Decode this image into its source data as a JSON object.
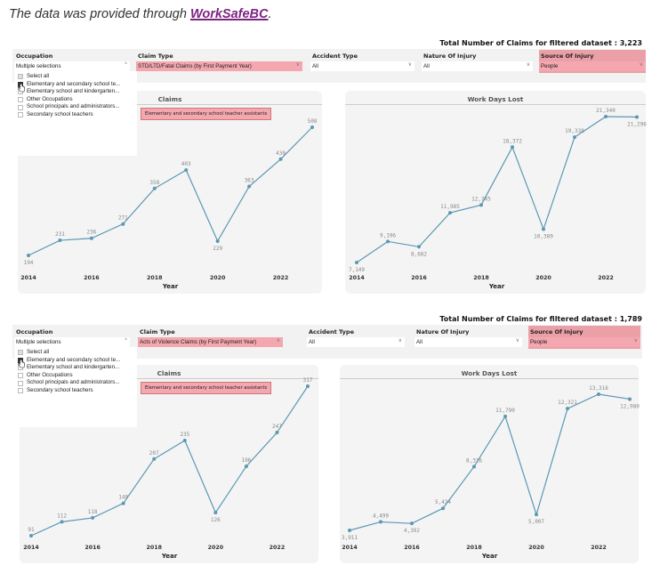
{
  "intro": {
    "text": "The data was provided through ",
    "link": "WorkSafeBC",
    "end": "."
  },
  "dashboards": [
    {
      "total_label": "Total Number of Claims for filtered dataset : 3,223",
      "filters": {
        "occupation": {
          "label": "Occupation",
          "value": "Multiple selections"
        },
        "claim_type": {
          "label": "Claim Type",
          "value": "STD/LTD/Fatal Claims (by First Payment Year)"
        },
        "accident_type": {
          "label": "Accident Type",
          "value": "All"
        },
        "nature": {
          "label": "Nature Of Injury",
          "value": "All"
        },
        "source": {
          "label": "Source Of Injury",
          "value": "People"
        }
      },
      "dropdown": [
        "Select all",
        "Elementary and secondary school te...",
        "Elementary school and kindergarten...",
        "Other Occupations",
        "School principals and administrators...",
        "Secondary school teachers"
      ],
      "tooltip": "Elementary and secondary school teacher assistants",
      "charts": [
        {
          "title": "Claims",
          "xlabel": "Year",
          "x": [
            2014,
            2015,
            2016,
            2017,
            2018,
            2019,
            2020,
            2021,
            2022,
            2023
          ],
          "values": [
            194,
            231,
            236,
            271,
            358,
            403,
            229,
            363,
            430,
            508
          ],
          "ticks": [
            "2014",
            "2016",
            "2018",
            "2020",
            "2022"
          ]
        },
        {
          "title": "Work Days Lost",
          "xlabel": "Year",
          "x": [
            2014,
            2015,
            2016,
            2017,
            2018,
            2019,
            2020,
            2021,
            2022,
            2023
          ],
          "values": [
            7149,
            9196,
            8682,
            11985,
            12745,
            18372,
            10389,
            19338,
            21340,
            21296
          ],
          "ticks": [
            "2014",
            "2016",
            "2018",
            "2020",
            "2022"
          ]
        }
      ]
    },
    {
      "total_label": "Total Number of Claims for filtered dataset : 1,789",
      "filters": {
        "occupation": {
          "label": "Occupation",
          "value": "Multiple selections"
        },
        "claim_type": {
          "label": "Claim Type",
          "value": "Acts of Violence Claims (by First Payment Year)"
        },
        "accident_type": {
          "label": "Accident Type",
          "value": "All"
        },
        "nature": {
          "label": "Nature Of Injury",
          "value": "All"
        },
        "source": {
          "label": "Source Of Injury",
          "value": "People"
        }
      },
      "dropdown": [
        "Select all",
        "Elementary and secondary school te...",
        "Elementary school and kindergarten...",
        "Other Occupations",
        "School principals and administrators...",
        "Secondary school teachers"
      ],
      "tooltip": "Elementary and secondary school teacher assistants",
      "charts": [
        {
          "title": "Claims",
          "xlabel": "Year",
          "x": [
            2014,
            2015,
            2016,
            2017,
            2018,
            2019,
            2020,
            2021,
            2022,
            2023
          ],
          "values": [
            91,
            112,
            118,
            140,
            207,
            235,
            126,
            196,
            247,
            317
          ],
          "ticks": [
            "2014",
            "2016",
            "2018",
            "2020",
            "2022"
          ]
        },
        {
          "title": "Work Days Lost",
          "xlabel": "Year",
          "x": [
            2014,
            2015,
            2016,
            2017,
            2018,
            2019,
            2020,
            2021,
            2022,
            2023
          ],
          "values": [
            3911,
            4499,
            4392,
            5434,
            8316,
            11790,
            5007,
            12321,
            13316,
            12980
          ],
          "ticks": [
            "2014",
            "2016",
            "2018",
            "2020",
            "2022"
          ]
        }
      ]
    }
  ],
  "colors": {
    "line": "#5b98b3",
    "highlight": "#f4a7ae",
    "link": "#7b2580"
  }
}
